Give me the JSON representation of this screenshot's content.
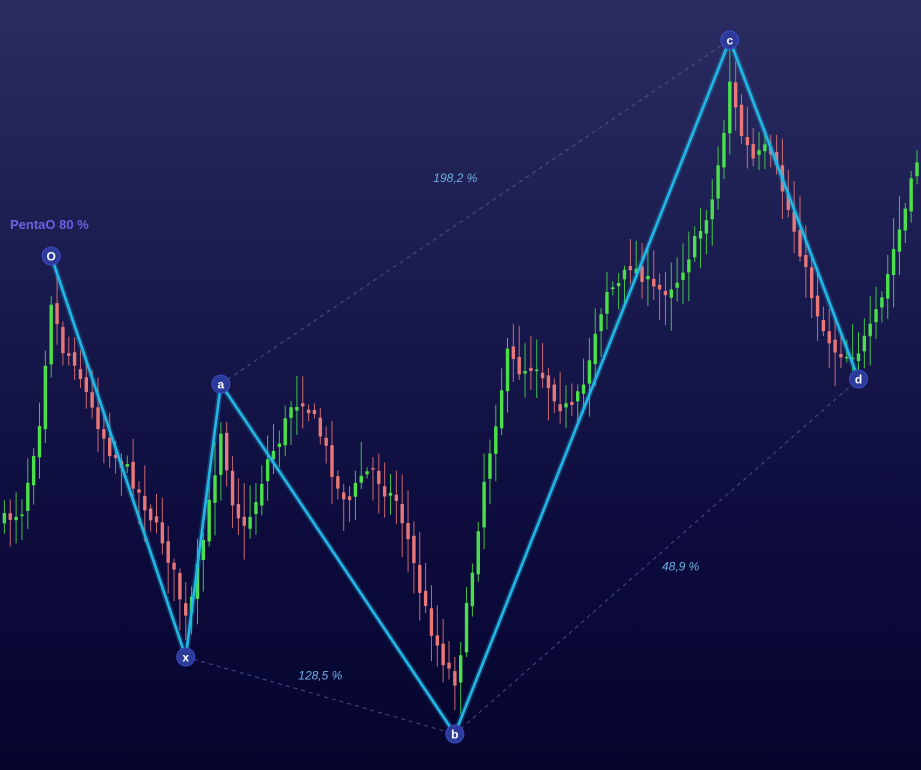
{
  "colors": {
    "background_top": "#2b2d62",
    "background_bottom": "#06052e",
    "bull": "#4be04b",
    "bear": "#e87878",
    "pattern_line": "#22b8e6",
    "guide_line": "#5a6aa8",
    "ratio_text": "#6fb0e0",
    "point_fill": "#2c3a9a",
    "title": "#6f5fe0"
  },
  "pattern": {
    "title": "PentaO 80 %"
  },
  "chart_data": {
    "type": "candlestick",
    "title": "PentaO 80 %",
    "xlabel": "",
    "ylabel": "",
    "grid": false,
    "legend": "none",
    "ylim": [
      0,
      770
    ],
    "pattern_points": [
      {
        "label": "O",
        "index": 8,
        "price": 256
      },
      {
        "label": "x",
        "index": 31,
        "price": 657
      },
      {
        "label": "a",
        "index": 37,
        "price": 384
      },
      {
        "label": "b",
        "index": 77,
        "price": 734
      },
      {
        "label": "c",
        "index": 124,
        "price": 40
      },
      {
        "label": "d",
        "index": 146,
        "price": 379
      }
    ],
    "ratio_labels": [
      {
        "text": "198,2 %",
        "from": "a",
        "to": "c"
      },
      {
        "text": "128,5 %",
        "from": "x",
        "to": "b"
      },
      {
        "text": "48,9 %",
        "from": "b",
        "to": "d"
      }
    ],
    "waypoints": [
      [
        0,
        520
      ],
      [
        3,
        510
      ],
      [
        6,
        420
      ],
      [
        8,
        300
      ],
      [
        10,
        350
      ],
      [
        12,
        360
      ],
      [
        15,
        410
      ],
      [
        18,
        450
      ],
      [
        21,
        470
      ],
      [
        24,
        505
      ],
      [
        27,
        540
      ],
      [
        29,
        575
      ],
      [
        31,
        620
      ],
      [
        32,
        600
      ],
      [
        34,
        540
      ],
      [
        36,
        470
      ],
      [
        37,
        430
      ],
      [
        39,
        500
      ],
      [
        41,
        530
      ],
      [
        43,
        500
      ],
      [
        45,
        460
      ],
      [
        47,
        440
      ],
      [
        49,
        405
      ],
      [
        51,
        400
      ],
      [
        53,
        420
      ],
      [
        55,
        450
      ],
      [
        57,
        490
      ],
      [
        59,
        500
      ],
      [
        61,
        475
      ],
      [
        63,
        470
      ],
      [
        65,
        490
      ],
      [
        67,
        500
      ],
      [
        69,
        540
      ],
      [
        71,
        590
      ],
      [
        73,
        630
      ],
      [
        75,
        660
      ],
      [
        77,
        680
      ],
      [
        78,
        650
      ],
      [
        80,
        570
      ],
      [
        82,
        480
      ],
      [
        84,
        420
      ],
      [
        86,
        355
      ],
      [
        88,
        370
      ],
      [
        91,
        365
      ],
      [
        93,
        385
      ],
      [
        95,
        405
      ],
      [
        97,
        410
      ],
      [
        99,
        385
      ],
      [
        101,
        330
      ],
      [
        103,
        290
      ],
      [
        105,
        285
      ],
      [
        107,
        265
      ],
      [
        109,
        275
      ],
      [
        111,
        290
      ],
      [
        113,
        290
      ],
      [
        115,
        280
      ],
      [
        117,
        255
      ],
      [
        119,
        230
      ],
      [
        121,
        200
      ],
      [
        123,
        130
      ],
      [
        124,
        80
      ],
      [
        125,
        110
      ],
      [
        126,
        135
      ],
      [
        128,
        160
      ],
      [
        130,
        150
      ],
      [
        132,
        170
      ],
      [
        134,
        210
      ],
      [
        136,
        250
      ],
      [
        138,
        295
      ],
      [
        140,
        330
      ],
      [
        142,
        350
      ],
      [
        144,
        355
      ],
      [
        146,
        350
      ],
      [
        148,
        330
      ],
      [
        150,
        300
      ],
      [
        152,
        250
      ],
      [
        154,
        210
      ],
      [
        156,
        160
      ],
      [
        157,
        140
      ]
    ],
    "seed": 7
  }
}
